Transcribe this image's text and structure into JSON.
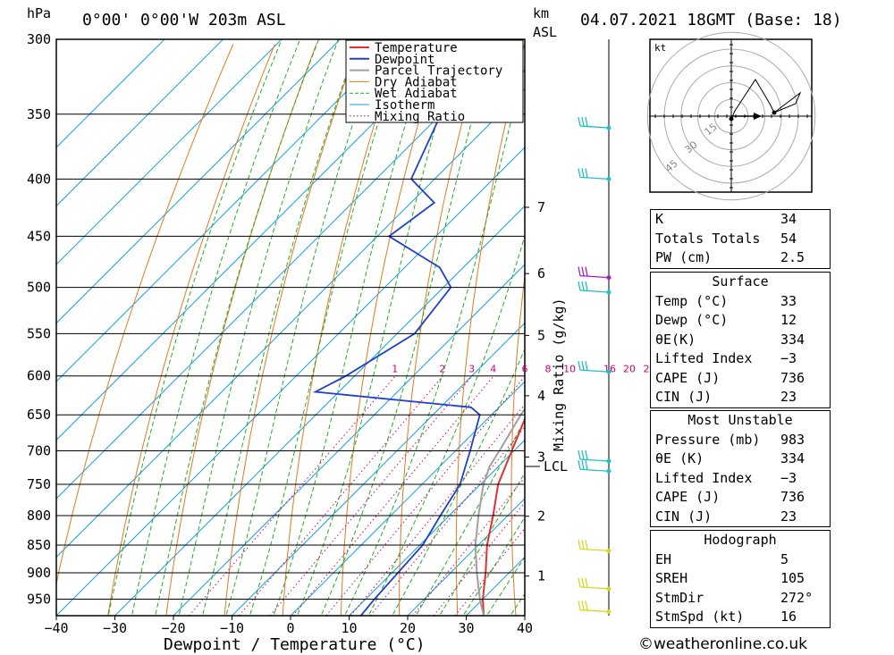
{
  "header": {
    "location": "0°00' 0°00'W 203m ASL",
    "datetime": "04.07.2021 18GMT (Base: 18)",
    "pressure_unit": "hPa",
    "height_unit_1": "km",
    "height_unit_2": "ASL"
  },
  "chart_data": {
    "type": "line",
    "title": "0°00' 0°00'W 203m ASL",
    "xlabel": "Dewpoint / Temperature (°C)",
    "ylabel": "hPa",
    "xlim": [
      -40,
      40
    ],
    "ylim": [
      300,
      983
    ],
    "x_ticks": [
      "−40",
      "−30",
      "−20",
      "−10",
      "0",
      "10",
      "20",
      "30",
      "40"
    ],
    "pressure_levels": [
      "300",
      "350",
      "400",
      "450",
      "500",
      "550",
      "600",
      "650",
      "700",
      "750",
      "800",
      "850",
      "900",
      "950"
    ],
    "height_ticks": [
      {
        "label": "1",
        "p": 906
      },
      {
        "label": "2",
        "p": 801
      },
      {
        "label": "3",
        "p": 709
      },
      {
        "label": "4",
        "p": 625
      },
      {
        "label": "5",
        "p": 552
      },
      {
        "label": "6",
        "p": 486
      },
      {
        "label": "7",
        "p": 424
      }
    ],
    "lcl_label": "LCL",
    "lcl_pressure": 723,
    "mixing_ratio_axis_label": "Mixing Ratio (g/kg)",
    "mixing_ratio_labels": [
      "1",
      "2",
      "3",
      "4",
      "6",
      "8",
      "10",
      "16",
      "20",
      "25"
    ],
    "legend": [
      "Temperature",
      "Dewpoint",
      "Parcel Trajectory",
      "Dry Adiabat",
      "Wet Adiabat",
      "Isotherm",
      "Mixing Ratio"
    ],
    "colors": {
      "temperature": "#e03030",
      "dewpoint": "#1f3fd0",
      "parcel": "#a0a0a0",
      "dry_adiabat": "#e07a20",
      "wet_adiabat": "#22aa22",
      "isotherm": "#1aa0e0",
      "mixing": "#cc0077",
      "wind_high": "#20c0c0",
      "wind_mid": "#a020c0",
      "wind_low": "#d8d820"
    },
    "series": [
      {
        "name": "Temperature",
        "points": [
          [
            983,
            33
          ],
          [
            950,
            30
          ],
          [
            900,
            26
          ],
          [
            850,
            21.5
          ],
          [
            800,
            17.5
          ],
          [
            750,
            13
          ],
          [
            700,
            9.6
          ],
          [
            650,
            6
          ],
          [
            620,
            5.2
          ],
          [
            600,
            4
          ],
          [
            550,
            -0.5
          ],
          [
            500,
            -5
          ],
          [
            450,
            -9.8
          ],
          [
            420,
            -14
          ],
          [
            400,
            -18.4
          ],
          [
            350,
            -25.5
          ],
          [
            300,
            -33.5
          ]
        ]
      },
      {
        "name": "Dewpoint",
        "points": [
          [
            983,
            12
          ],
          [
            950,
            11.5
          ],
          [
            900,
            11
          ],
          [
            850,
            10.5
          ],
          [
            800,
            8.5
          ],
          [
            750,
            6.5
          ],
          [
            700,
            2.5
          ],
          [
            650,
            -2
          ],
          [
            640,
            -4.8
          ],
          [
            620,
            -34
          ],
          [
            600,
            -31.5
          ],
          [
            550,
            -27
          ],
          [
            500,
            -28.7
          ],
          [
            480,
            -34
          ],
          [
            450,
            -48
          ],
          [
            420,
            -46
          ],
          [
            400,
            -54
          ],
          [
            350,
            -60
          ],
          [
            300,
            -66
          ]
        ]
      },
      {
        "name": "Parcel Trajectory",
        "points": [
          [
            983,
            33
          ],
          [
            950,
            29.5
          ],
          [
            900,
            24.5
          ],
          [
            850,
            19.5
          ],
          [
            800,
            15
          ],
          [
            750,
            10.5
          ],
          [
            723,
            8.5
          ],
          [
            700,
            7.5
          ],
          [
            650,
            5
          ],
          [
            600,
            3
          ],
          [
            550,
            0
          ],
          [
            500,
            -3.5
          ],
          [
            450,
            -8.5
          ],
          [
            400,
            -14.5
          ],
          [
            350,
            -22
          ],
          [
            300,
            -31
          ]
        ]
      }
    ],
    "wind_barbs": [
      {
        "p": 360,
        "color": "wind_high"
      },
      {
        "p": 400,
        "color": "wind_high"
      },
      {
        "p": 490,
        "color": "wind_mid"
      },
      {
        "p": 505,
        "color": "wind_high"
      },
      {
        "p": 595,
        "color": "wind_high"
      },
      {
        "p": 715,
        "color": "wind_high"
      },
      {
        "p": 730,
        "color": "wind_high"
      },
      {
        "p": 860,
        "color": "wind_low"
      },
      {
        "p": 930,
        "color": "wind_low"
      },
      {
        "p": 975,
        "color": "wind_low"
      }
    ]
  },
  "hodograph": {
    "unit": "kt",
    "ring_labels": [
      "15",
      "30",
      "45"
    ]
  },
  "indices": {
    "k_label": "K",
    "k_value": "34",
    "tt_label": "Totals Totals",
    "tt_value": "54",
    "pw_label": "PW (cm)",
    "pw_value": "2.5"
  },
  "surface": {
    "title": "Surface",
    "temp_label": "Temp (°C)",
    "temp_value": "33",
    "dewp_label": "Dewp (°C)",
    "dewp_value": "12",
    "theta_label": "θE(K)",
    "theta_value": "334",
    "li_label": "Lifted Index",
    "li_value": "−3",
    "cape_label": "CAPE (J)",
    "cape_value": "736",
    "cin_label": "CIN (J)",
    "cin_value": "23"
  },
  "most_unstable": {
    "title": "Most Unstable",
    "pressure_label": "Pressure (mb)",
    "pressure_value": "983",
    "theta_label": "θE (K)",
    "theta_value": "334",
    "li_label": "Lifted Index",
    "li_value": "−3",
    "cape_label": "CAPE (J)",
    "cape_value": "736",
    "cin_label": "CIN (J)",
    "cin_value": "23"
  },
  "hodo_params": {
    "title": "Hodograph",
    "eh_label": "EH",
    "eh_value": "5",
    "sreh_label": "SREH",
    "sreh_value": "105",
    "stmdir_label": "StmDir",
    "stmdir_value": "272°",
    "stmspd_label": "StmSpd (kt)",
    "stmspd_value": "16"
  },
  "credit": "©weatheronline.co.uk"
}
